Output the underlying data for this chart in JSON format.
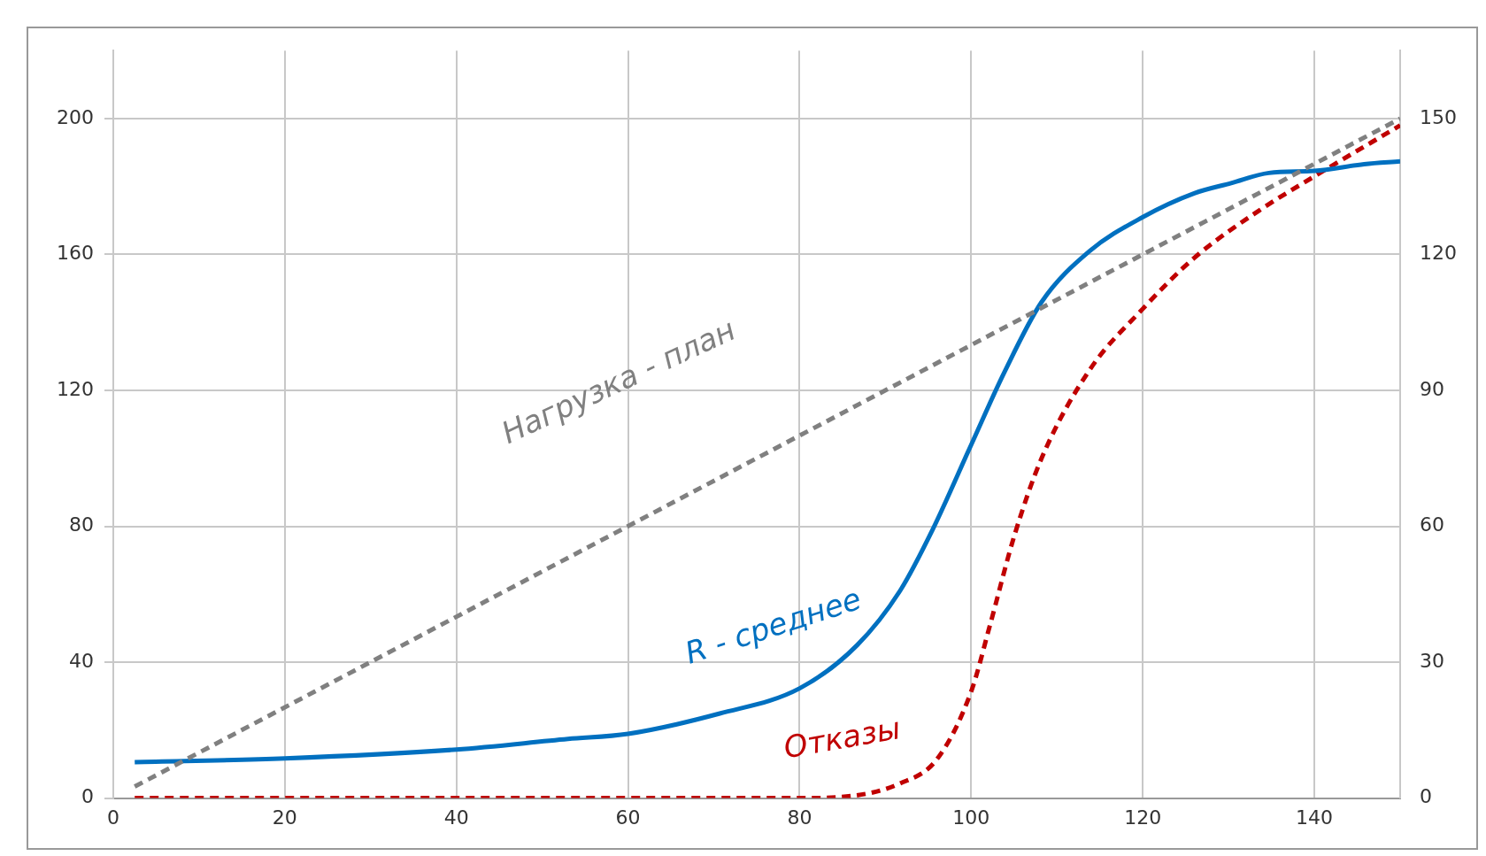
{
  "chart_data": {
    "type": "line",
    "xlim": [
      0,
      150
    ],
    "xticks": [
      0,
      20,
      40,
      60,
      80,
      100,
      120,
      140
    ],
    "ylim": [
      0,
      220
    ],
    "yticks": [
      0,
      40,
      80,
      120,
      160,
      200
    ],
    "y2lim": [
      0,
      165
    ],
    "y2ticks": [
      0,
      30,
      60,
      90,
      120,
      150
    ],
    "grid": true,
    "legend": false,
    "marker": "none",
    "series": [
      {
        "name": "Нагрузка - план",
        "color": "#808080",
        "line_style": "dashed",
        "x": [
          2.5,
          150
        ],
        "values": [
          3.4,
          200
        ]
      },
      {
        "name": "R - среднее",
        "color": "#0070c0",
        "line_style": "solid",
        "x": [
          2.5,
          20,
          40,
          53,
          60,
          70.7,
          80,
          86.7,
          91.7,
          95.5,
          100,
          103.8,
          108.2,
          113.8,
          120,
          126,
          130.3,
          134.7,
          140,
          145.8,
          150
        ],
        "values": [
          10.6,
          11.7,
          14.3,
          17.4,
          18.9,
          24.9,
          32.3,
          45,
          61,
          79,
          104,
          125,
          146,
          161,
          171,
          178,
          181,
          184,
          184.6,
          186.6,
          187.4
        ]
      },
      {
        "name": "Отказы",
        "color": "#c00000",
        "line_style": "dashed",
        "x": [
          2.5,
          40,
          80,
          86,
          91.7,
          96,
          100,
          102.2,
          105,
          108.2,
          113.8,
          120,
          126,
          133.6,
          140,
          150
        ],
        "values": [
          0,
          0,
          0,
          0.6,
          4.3,
          11.4,
          31.4,
          51,
          77,
          100,
          126,
          144,
          159,
          173,
          183,
          198
        ]
      }
    ]
  }
}
